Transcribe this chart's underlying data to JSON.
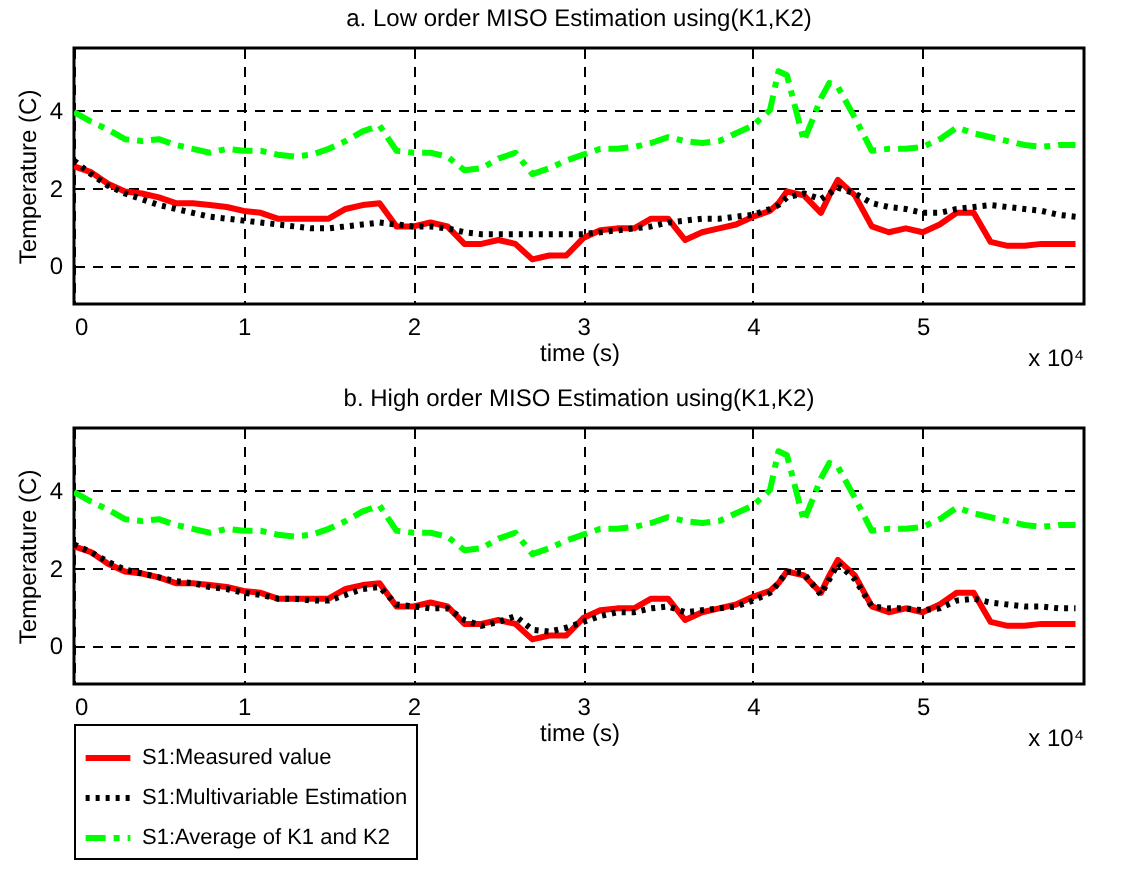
{
  "chart_data": [
    {
      "type": "line",
      "title": "a. Low order MISO Estimation using(K1,K2)",
      "xlabel": "time (s)",
      "ylabel": "Temperature (C)",
      "annotations": [
        "x 10⁴"
      ],
      "x": [
        0,
        0.1,
        0.2,
        0.3,
        0.4,
        0.5,
        0.6,
        0.7,
        0.8,
        0.9,
        1.0,
        1.1,
        1.2,
        1.3,
        1.4,
        1.5,
        1.6,
        1.7,
        1.8,
        1.9,
        2.0,
        2.1,
        2.2,
        2.3,
        2.4,
        2.5,
        2.6,
        2.7,
        2.8,
        2.9,
        3.0,
        3.1,
        3.2,
        3.3,
        3.4,
        3.5,
        3.6,
        3.7,
        3.8,
        3.9,
        4.0,
        4.1,
        4.15,
        4.2,
        4.3,
        4.4,
        4.45,
        4.5,
        4.6,
        4.7,
        4.8,
        4.9,
        5.0,
        5.1,
        5.2,
        5.3,
        5.4,
        5.5,
        5.6,
        5.7,
        5.8,
        5.9
      ],
      "series": [
        {
          "color": "#ff0000",
          "line_style": "solid",
          "values": [
            2.55,
            2.4,
            2.1,
            1.9,
            1.85,
            1.75,
            1.6,
            1.6,
            1.55,
            1.5,
            1.4,
            1.35,
            1.2,
            1.2,
            1.2,
            1.2,
            1.45,
            1.55,
            1.6,
            1.0,
            1.0,
            1.1,
            1.0,
            0.55,
            0.55,
            0.65,
            0.55,
            0.15,
            0.25,
            0.25,
            0.7,
            0.9,
            0.95,
            0.95,
            1.2,
            1.2,
            0.65,
            0.85,
            0.95,
            1.05,
            1.25,
            1.4,
            1.6,
            1.9,
            1.8,
            1.35,
            1.8,
            2.2,
            1.8,
            1.0,
            0.85,
            0.95,
            0.85,
            1.05,
            1.35,
            1.35,
            0.6,
            0.5,
            0.5,
            0.55,
            0.55,
            0.55
          ]
        },
        {
          "color": "#000000",
          "line_style": "dotted",
          "values": [
            2.7,
            2.35,
            2.05,
            1.85,
            1.7,
            1.55,
            1.45,
            1.35,
            1.25,
            1.2,
            1.15,
            1.1,
            1.05,
            1.0,
            0.95,
            0.95,
            1.0,
            1.05,
            1.1,
            1.05,
            1.0,
            1.0,
            0.95,
            0.85,
            0.8,
            0.8,
            0.8,
            0.8,
            0.8,
            0.8,
            0.8,
            0.85,
            0.9,
            0.95,
            1.0,
            1.1,
            1.15,
            1.2,
            1.2,
            1.25,
            1.3,
            1.45,
            1.55,
            1.75,
            1.85,
            1.7,
            1.85,
            2.0,
            1.85,
            1.6,
            1.5,
            1.45,
            1.35,
            1.35,
            1.45,
            1.5,
            1.55,
            1.5,
            1.45,
            1.4,
            1.3,
            1.25
          ]
        },
        {
          "color": "#00ff00",
          "line_style": "dashed",
          "values": [
            3.95,
            3.7,
            3.5,
            3.25,
            3.2,
            3.25,
            3.1,
            3.0,
            2.9,
            3.0,
            2.95,
            2.95,
            2.85,
            2.8,
            2.85,
            3.0,
            3.2,
            3.45,
            3.6,
            2.95,
            2.9,
            2.9,
            2.8,
            2.45,
            2.5,
            2.75,
            2.9,
            2.35,
            2.5,
            2.7,
            2.85,
            3.0,
            3.0,
            3.05,
            3.15,
            3.3,
            3.2,
            3.15,
            3.2,
            3.4,
            3.6,
            4.0,
            5.0,
            4.9,
            3.2,
            4.3,
            4.7,
            4.6,
            3.8,
            2.95,
            3.0,
            3.0,
            3.05,
            3.25,
            3.55,
            3.4,
            3.3,
            3.2,
            3.1,
            3.05,
            3.1,
            3.1
          ]
        }
      ],
      "xlim": [
        0,
        5.95
      ],
      "xticks": [
        0,
        1,
        2,
        3,
        4,
        5
      ],
      "ylim": [
        -1,
        5.6
      ],
      "yticks": [
        0,
        2,
        4
      ],
      "grid": true
    },
    {
      "type": "line",
      "title": "b. High order MISO Estimation using(K1,K2)",
      "xlabel": "time (s)",
      "ylabel": "Temperature (C)",
      "annotations": [
        "x 10⁴"
      ],
      "legend": "bottom left",
      "x": [
        0,
        0.1,
        0.2,
        0.3,
        0.4,
        0.5,
        0.6,
        0.7,
        0.8,
        0.9,
        1.0,
        1.1,
        1.2,
        1.3,
        1.4,
        1.5,
        1.6,
        1.7,
        1.8,
        1.9,
        2.0,
        2.1,
        2.2,
        2.3,
        2.4,
        2.5,
        2.6,
        2.7,
        2.8,
        2.9,
        3.0,
        3.1,
        3.2,
        3.3,
        3.4,
        3.5,
        3.6,
        3.7,
        3.8,
        3.9,
        4.0,
        4.1,
        4.15,
        4.2,
        4.3,
        4.4,
        4.45,
        4.5,
        4.6,
        4.7,
        4.8,
        4.9,
        5.0,
        5.1,
        5.2,
        5.3,
        5.4,
        5.5,
        5.6,
        5.7,
        5.8,
        5.9
      ],
      "series": [
        {
          "name": "S1:Measured value",
          "color": "#ff0000",
          "line_style": "solid",
          "values": [
            2.55,
            2.4,
            2.1,
            1.9,
            1.85,
            1.75,
            1.6,
            1.6,
            1.55,
            1.5,
            1.4,
            1.35,
            1.2,
            1.2,
            1.2,
            1.2,
            1.45,
            1.55,
            1.6,
            1.0,
            1.0,
            1.1,
            1.0,
            0.55,
            0.55,
            0.65,
            0.55,
            0.15,
            0.25,
            0.25,
            0.7,
            0.9,
            0.95,
            0.95,
            1.2,
            1.2,
            0.65,
            0.85,
            0.95,
            1.05,
            1.25,
            1.4,
            1.6,
            1.9,
            1.8,
            1.35,
            1.8,
            2.2,
            1.8,
            1.0,
            0.85,
            0.95,
            0.85,
            1.05,
            1.35,
            1.35,
            0.6,
            0.5,
            0.5,
            0.55,
            0.55,
            0.55
          ]
        },
        {
          "name": "S1:Multivariable Estimation",
          "color": "#000000",
          "line_style": "dotted",
          "values": [
            2.6,
            2.4,
            2.15,
            1.95,
            1.85,
            1.75,
            1.65,
            1.6,
            1.5,
            1.45,
            1.35,
            1.3,
            1.2,
            1.2,
            1.15,
            1.15,
            1.3,
            1.45,
            1.5,
            1.05,
            1.0,
            0.95,
            0.95,
            0.65,
            0.5,
            0.6,
            0.75,
            0.4,
            0.35,
            0.45,
            0.6,
            0.75,
            0.85,
            0.85,
            0.95,
            1.0,
            0.85,
            0.9,
            0.95,
            1.0,
            1.15,
            1.35,
            1.6,
            1.9,
            1.85,
            1.3,
            1.7,
            2.1,
            1.7,
            1.0,
            0.95,
            0.95,
            0.9,
            0.95,
            1.15,
            1.2,
            1.1,
            1.05,
            1.0,
            1.0,
            0.95,
            0.95
          ]
        },
        {
          "name": "S1:Average of K1 and K2",
          "color": "#00ff00",
          "line_style": "dashed",
          "values": [
            3.95,
            3.7,
            3.5,
            3.25,
            3.2,
            3.25,
            3.1,
            3.0,
            2.9,
            3.0,
            2.95,
            2.95,
            2.85,
            2.8,
            2.85,
            3.0,
            3.2,
            3.45,
            3.6,
            2.95,
            2.9,
            2.9,
            2.8,
            2.45,
            2.5,
            2.75,
            2.9,
            2.35,
            2.5,
            2.7,
            2.85,
            3.0,
            3.0,
            3.05,
            3.15,
            3.3,
            3.2,
            3.15,
            3.2,
            3.4,
            3.6,
            4.0,
            5.0,
            4.9,
            3.2,
            4.3,
            4.7,
            4.6,
            3.8,
            2.95,
            3.0,
            3.0,
            3.05,
            3.25,
            3.55,
            3.4,
            3.3,
            3.2,
            3.1,
            3.05,
            3.1,
            3.1
          ]
        }
      ],
      "xlim": [
        0,
        5.95
      ],
      "xticks": [
        0,
        1,
        2,
        3,
        4,
        5
      ],
      "ylim": [
        -1,
        5.6
      ],
      "yticks": [
        0,
        2,
        4
      ],
      "grid": true
    }
  ]
}
